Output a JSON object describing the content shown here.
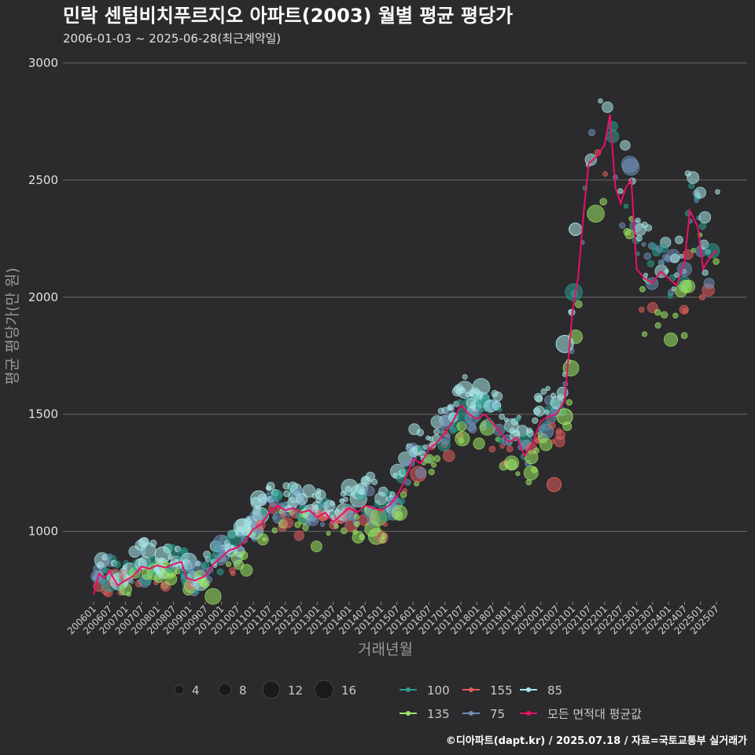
{
  "chart_data": {
    "type": "scatter",
    "title": "민락 센텀비치푸르지오 아파트(2003) 월별 평균 평당가",
    "subtitle": "2006-01-03 ~ 2025-06-28(최근계약일)",
    "xlabel": "거래년월",
    "ylabel": "평균 평당가(만 원)",
    "ylim": [
      700,
      3000
    ],
    "yticks": [
      1000,
      1500,
      2000,
      2500,
      3000
    ],
    "x_range": [
      "2006-01",
      "2025-07"
    ],
    "xticks": [
      "200601",
      "200607",
      "200701",
      "200707",
      "200801",
      "200807",
      "200901",
      "200907",
      "201001",
      "201007",
      "201101",
      "201107",
      "201201",
      "201207",
      "201301",
      "201307",
      "201401",
      "201407",
      "201501",
      "201507",
      "201601",
      "201607",
      "201701",
      "201707",
      "201801",
      "201807",
      "201901",
      "201907",
      "202001",
      "202007",
      "202101",
      "202107",
      "202201",
      "202207",
      "202301",
      "202307",
      "202401",
      "202407",
      "202501",
      "202507"
    ],
    "grid": "horizontal",
    "series": [
      {
        "name": "100",
        "color": "#2a9d8f"
      },
      {
        "name": "135",
        "color": "#9be564"
      },
      {
        "name": "155",
        "color": "#e05d5d"
      },
      {
        "name": "75",
        "color": "#6f8fb8"
      },
      {
        "name": "85",
        "color": "#a8e6e8"
      }
    ],
    "size_legend": [
      4,
      8,
      12,
      16
    ],
    "trend_line": {
      "name": "모든 면적대 평균값",
      "color": "#e8106a",
      "points": [
        [
          "2006-01",
          730
        ],
        [
          "2006-03",
          820
        ],
        [
          "2006-05",
          800
        ],
        [
          "2006-07",
          830
        ],
        [
          "2006-10",
          770
        ],
        [
          "2007-01",
          790
        ],
        [
          "2007-04",
          810
        ],
        [
          "2007-07",
          850
        ],
        [
          "2007-10",
          840
        ],
        [
          "2008-01",
          855
        ],
        [
          "2008-04",
          845
        ],
        [
          "2008-07",
          860
        ],
        [
          "2008-10",
          870
        ],
        [
          "2008-12",
          800
        ],
        [
          "2009-03",
          790
        ],
        [
          "2009-07",
          810
        ],
        [
          "2009-10",
          860
        ],
        [
          "2010-01",
          890
        ],
        [
          "2010-04",
          920
        ],
        [
          "2010-07",
          930
        ],
        [
          "2010-10",
          960
        ],
        [
          "2011-01",
          1010
        ],
        [
          "2011-04",
          1030
        ],
        [
          "2011-07",
          1080
        ],
        [
          "2011-10",
          1110
        ],
        [
          "2012-01",
          1090
        ],
        [
          "2012-04",
          1100
        ],
        [
          "2012-07",
          1080
        ],
        [
          "2012-10",
          1090
        ],
        [
          "2013-01",
          1060
        ],
        [
          "2013-04",
          1080
        ],
        [
          "2013-07",
          1040
        ],
        [
          "2013-10",
          1070
        ],
        [
          "2014-01",
          1100
        ],
        [
          "2014-04",
          1080
        ],
        [
          "2014-07",
          1110
        ],
        [
          "2014-10",
          1100
        ],
        [
          "2015-01",
          1090
        ],
        [
          "2015-04",
          1110
        ],
        [
          "2015-07",
          1150
        ],
        [
          "2015-10",
          1220
        ],
        [
          "2016-01",
          1310
        ],
        [
          "2016-04",
          1290
        ],
        [
          "2016-07",
          1350
        ],
        [
          "2016-10",
          1380
        ],
        [
          "2017-01",
          1420
        ],
        [
          "2017-04",
          1470
        ],
        [
          "2017-07",
          1540
        ],
        [
          "2017-10",
          1500
        ],
        [
          "2018-01",
          1480
        ],
        [
          "2018-04",
          1500
        ],
        [
          "2018-07",
          1460
        ],
        [
          "2018-10",
          1420
        ],
        [
          "2019-01",
          1380
        ],
        [
          "2019-04",
          1400
        ],
        [
          "2019-07",
          1320
        ],
        [
          "2019-10",
          1380
        ],
        [
          "2020-01",
          1470
        ],
        [
          "2020-04",
          1490
        ],
        [
          "2020-07",
          1500
        ],
        [
          "2020-10",
          1560
        ],
        [
          "2021-01",
          1950
        ],
        [
          "2021-03",
          2080
        ],
        [
          "2021-05",
          2350
        ],
        [
          "2021-07",
          2570
        ],
        [
          "2021-10",
          2600
        ],
        [
          "2022-01",
          2650
        ],
        [
          "2022-03",
          2780
        ],
        [
          "2022-05",
          2470
        ],
        [
          "2022-07",
          2400
        ],
        [
          "2022-09",
          2470
        ],
        [
          "2022-11",
          2500
        ],
        [
          "2023-01",
          2120
        ],
        [
          "2023-04",
          2080
        ],
        [
          "2023-07",
          2060
        ],
        [
          "2023-10",
          2110
        ],
        [
          "2024-01",
          2080
        ],
        [
          "2024-04",
          2050
        ],
        [
          "2024-07",
          2150
        ],
        [
          "2024-09",
          2370
        ],
        [
          "2024-12",
          2300
        ],
        [
          "2025-02",
          2120
        ],
        [
          "2025-04",
          2160
        ],
        [
          "2025-07",
          2200
        ]
      ]
    }
  },
  "credit": "©디아파트(dapt.kr) / 2025.07.18 / 자료=국토교통부 실거래가"
}
